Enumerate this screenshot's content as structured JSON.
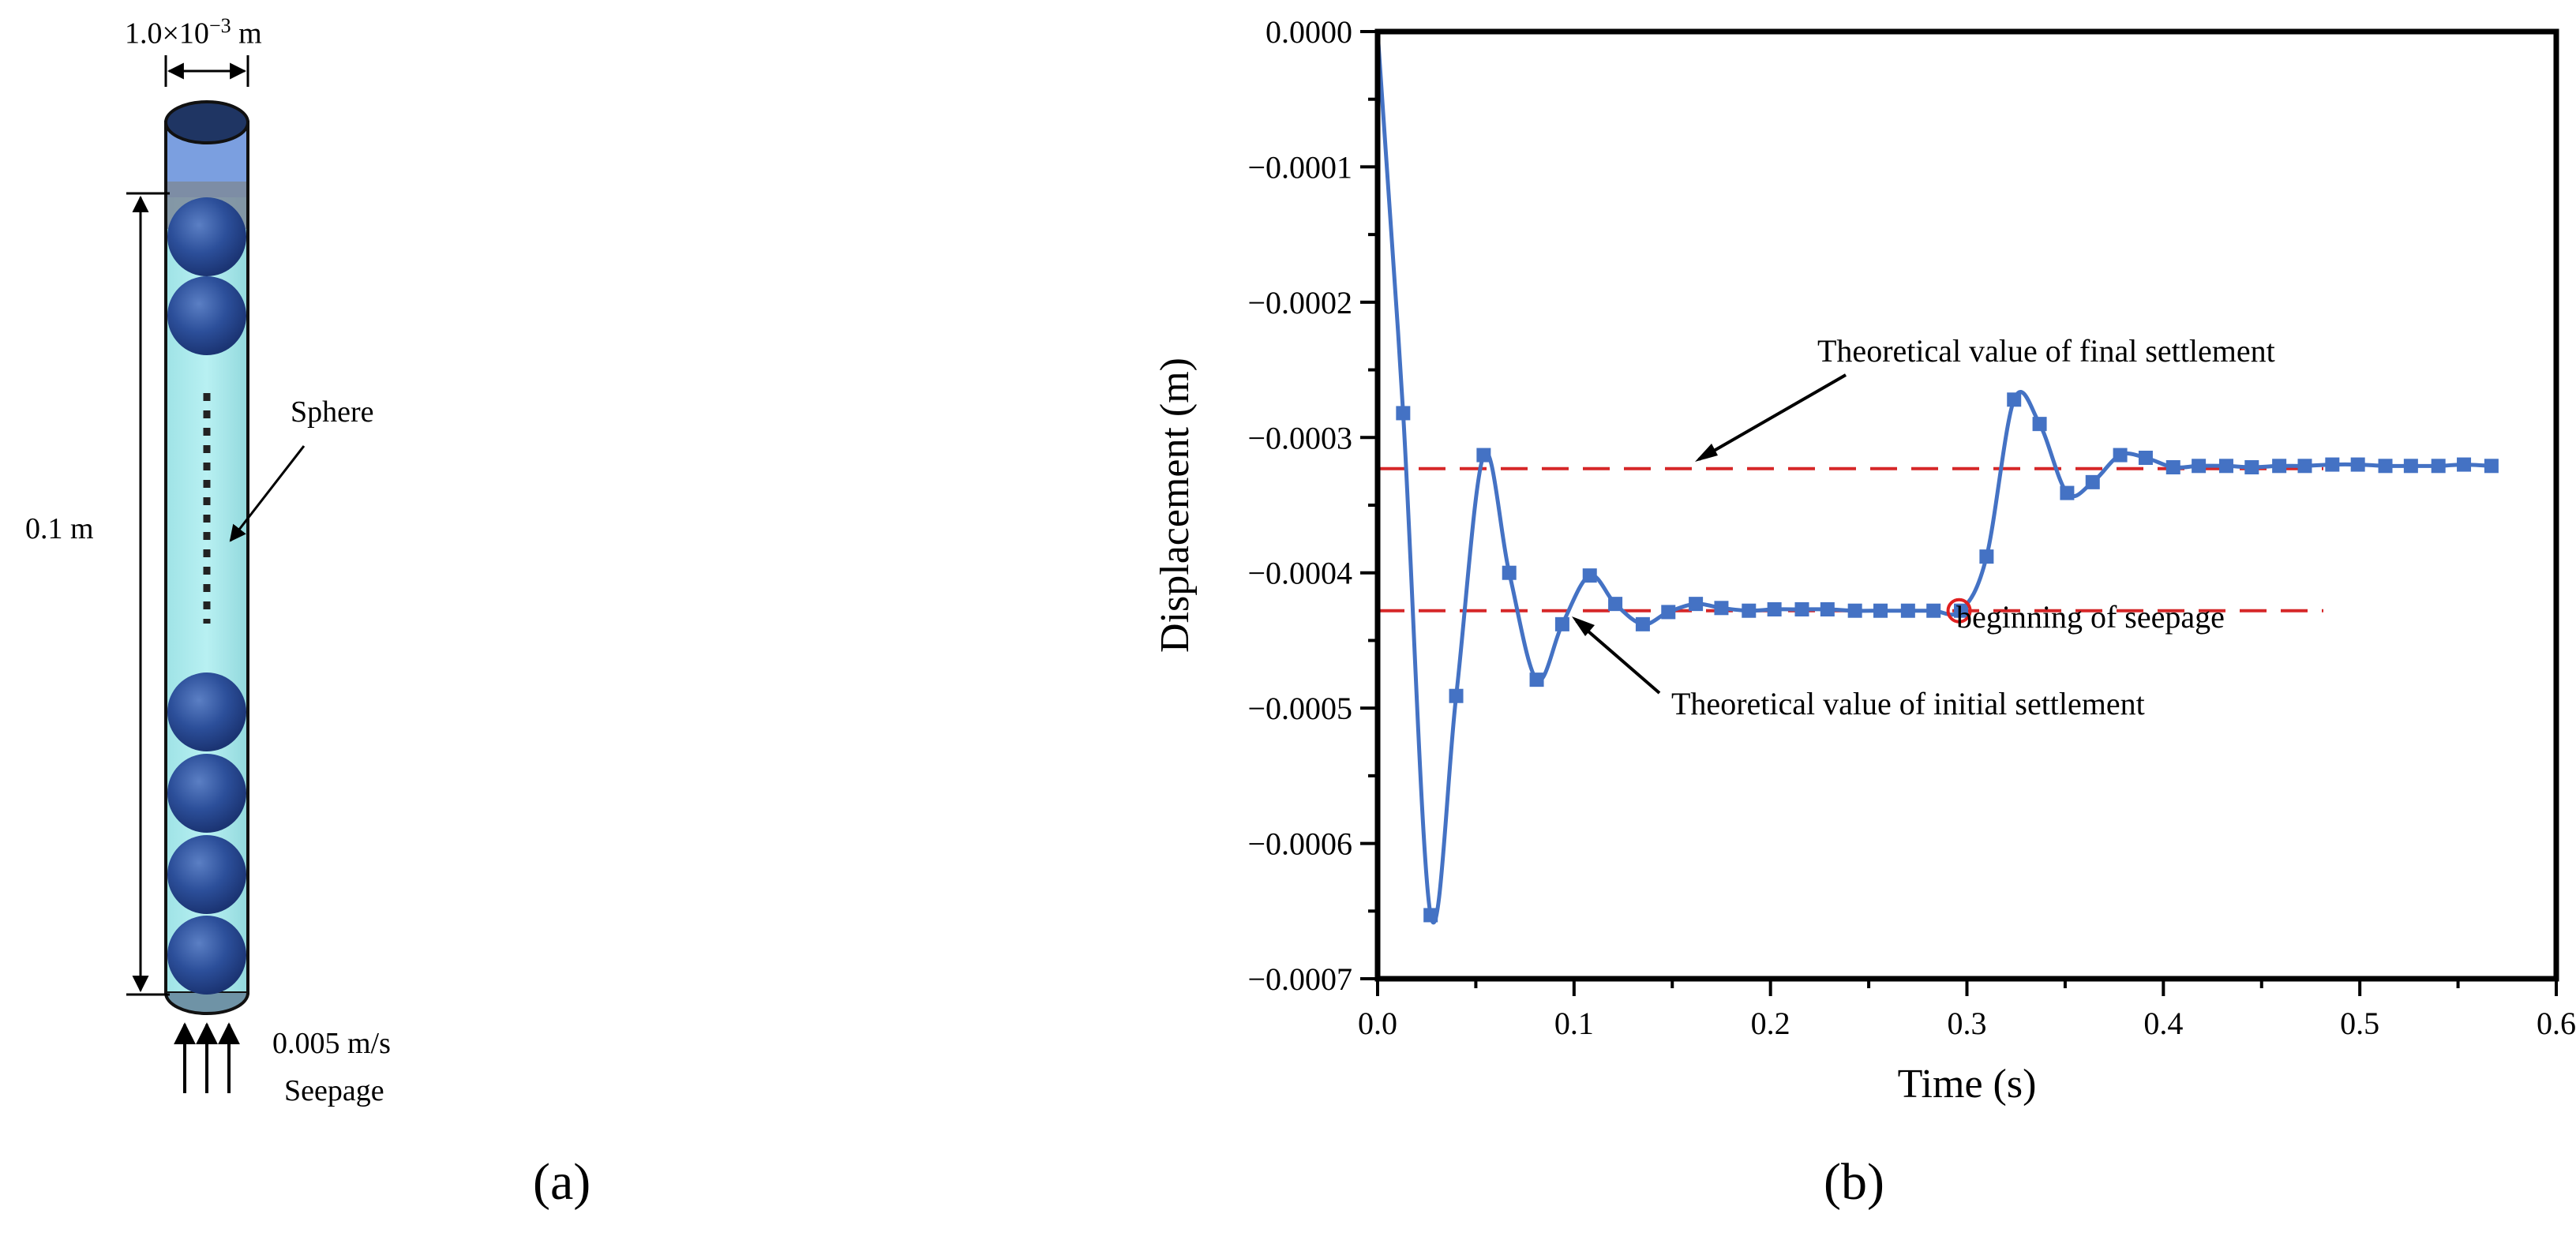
{
  "panel_a": {
    "panel_label": "(a)",
    "width_label": "1.0×10",
    "width_exponent": "−3",
    "width_unit": " m",
    "height_label": "0.1 m",
    "sphere_label": "Sphere",
    "velocity_label": "0.005 m/s",
    "seepage_label": "Seepage"
  },
  "panel_b": {
    "panel_label": "(b)"
  },
  "chart_data": {
    "type": "line",
    "xlabel": "Time (s)",
    "ylabel": "Displacement (m)",
    "xlim": [
      0.0,
      0.6
    ],
    "ylim": [
      -0.0007,
      0.0
    ],
    "x_ticks": [
      "0.0",
      "0.1",
      "0.2",
      "0.3",
      "0.4",
      "0.5",
      "0.6"
    ],
    "y_ticks": [
      "0.0000",
      "−0.0001",
      "−0.0002",
      "−0.0003",
      "−0.0004",
      "−0.0005",
      "−0.0006",
      "−0.0007"
    ],
    "series": [
      {
        "color": "#4472c4",
        "marker": "square",
        "x": [
          0.0,
          0.013,
          0.027,
          0.04,
          0.054,
          0.067,
          0.081,
          0.094,
          0.108,
          0.121,
          0.135,
          0.148,
          0.162,
          0.175,
          0.189,
          0.202,
          0.216,
          0.229,
          0.243,
          0.256,
          0.27,
          0.283,
          0.297,
          0.31,
          0.324,
          0.337,
          0.351,
          0.364,
          0.378,
          0.391,
          0.405,
          0.418,
          0.432,
          0.445,
          0.459,
          0.472,
          0.486,
          0.499,
          0.513,
          0.526,
          0.54,
          0.553,
          0.567
        ],
        "y": [
          0.0,
          -0.000282,
          -0.000653,
          -0.000491,
          -0.000313,
          -0.0004,
          -0.000479,
          -0.000438,
          -0.000402,
          -0.000423,
          -0.000438,
          -0.000429,
          -0.000423,
          -0.000426,
          -0.000428,
          -0.000427,
          -0.000427,
          -0.000427,
          -0.000428,
          -0.000428,
          -0.000428,
          -0.000428,
          -0.000428,
          -0.000388,
          -0.000272,
          -0.00029,
          -0.000341,
          -0.000333,
          -0.000313,
          -0.000315,
          -0.000322,
          -0.000321,
          -0.000321,
          -0.000322,
          -0.000321,
          -0.000321,
          -0.00032,
          -0.00032,
          -0.000321,
          -0.000321,
          -0.000321,
          -0.00032,
          -0.000321
        ]
      }
    ],
    "reference_lines": [
      {
        "y": -0.000323,
        "color": "#d62728",
        "style": "dashed"
      },
      {
        "y": -0.000428,
        "color": "#d62728",
        "style": "dashed"
      }
    ],
    "annotations": [
      {
        "text": "Theoretical value of final settlement"
      },
      {
        "text": "Theoretical value of initial settlement"
      },
      {
        "text": "beginning of seepage",
        "x": 0.296,
        "y": -0.000428
      }
    ]
  }
}
